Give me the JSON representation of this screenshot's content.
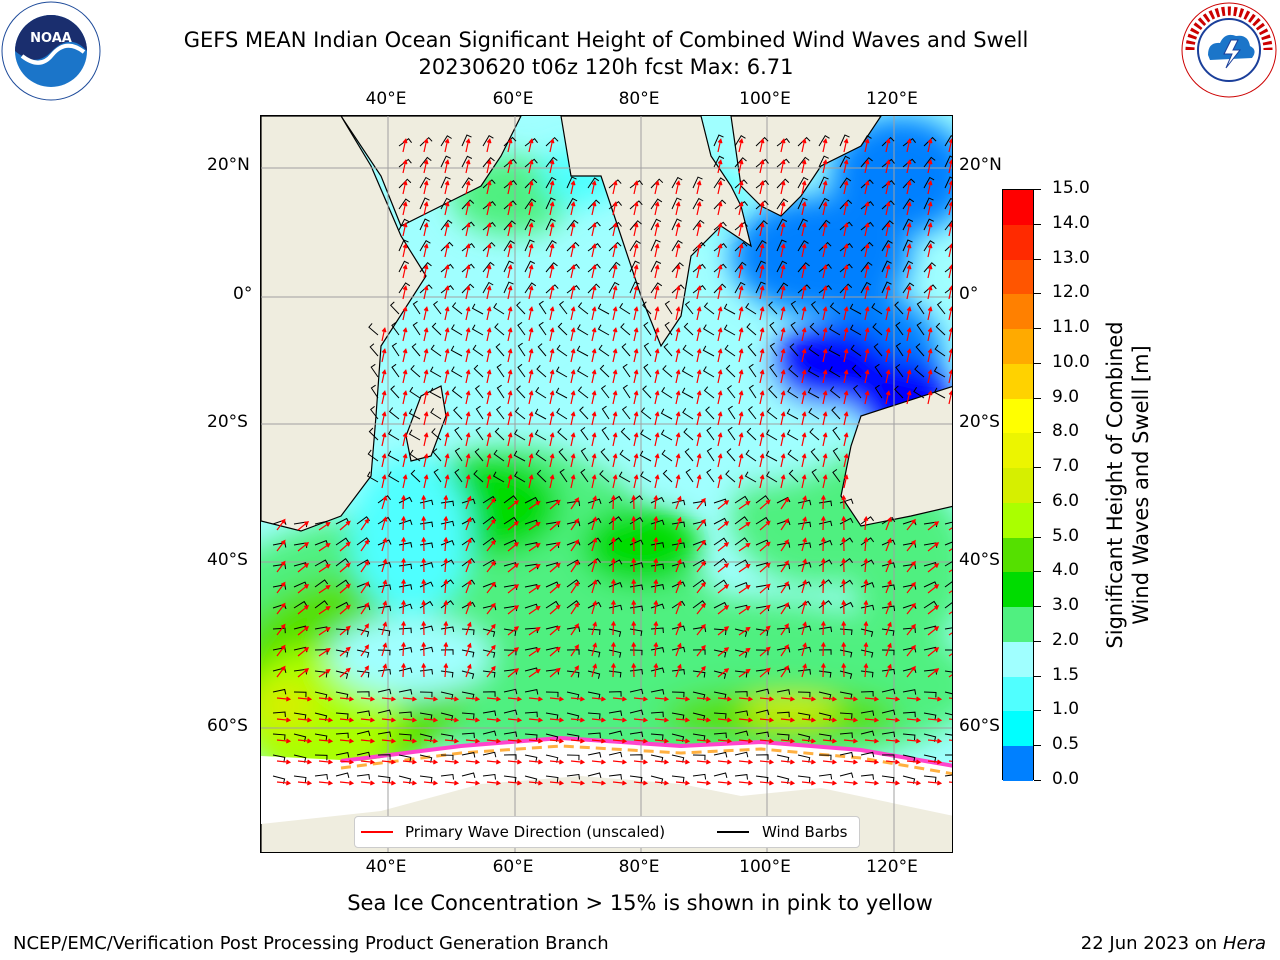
{
  "header": {
    "title": "GEFS MEAN Indian Ocean Significant Height of Combined Wind Waves and Swell",
    "subtitle": "20230620 t06z 120h fcst   Max: 6.71"
  },
  "logos": {
    "left": {
      "icon": "noaa-logo",
      "text": "NOAA"
    },
    "right": {
      "icon": "nws-logo",
      "text": "NATIONAL WEATHER SERVICE"
    }
  },
  "map": {
    "lon_ticks_top": [
      "40°E",
      "60°E",
      "80°E",
      "100°E",
      "120°E"
    ],
    "lon_ticks_bottom": [
      "40°E",
      "60°E",
      "80°E",
      "100°E",
      "120°E"
    ],
    "lat_ticks_left": [
      "20°N",
      "0°",
      "20°S",
      "40°S",
      "60°S"
    ],
    "lat_ticks_right": [
      "20°N",
      "0°",
      "20°S",
      "40°S",
      "60°S"
    ],
    "colors": {
      "land": "#efeddf",
      "ice": "#ffffff"
    }
  },
  "colorbar": {
    "label_line1": "Significant Height of Combined",
    "label_line2": "Wind Waves and Swell [m]",
    "ticks": [
      "15.0",
      "14.0",
      "13.0",
      "12.0",
      "11.0",
      "10.0",
      "9.0",
      "8.0",
      "7.0",
      "6.0",
      "5.0",
      "4.0",
      "3.0",
      "2.0",
      "1.5",
      "1.0",
      "0.5",
      "0.0"
    ],
    "colors": [
      "#ff0000",
      "#ff2a00",
      "#ff5500",
      "#ff8000",
      "#ffaa00",
      "#ffd200",
      "#ffff00",
      "#ecf500",
      "#d6ef00",
      "#aaff00",
      "#55e000",
      "#00dc00",
      "#50f080",
      "#a0ffff",
      "#50ffff",
      "#00ffff",
      "#0080ff",
      "#0000ff"
    ]
  },
  "legend": {
    "wave_label": "Primary Wave Direction (unscaled)",
    "wind_label": "Wind Barbs",
    "wave_color": "#ff0000",
    "wind_color": "#000000"
  },
  "footer": {
    "note": "Sea Ice Concentration > 15% is shown in pink to yellow",
    "branch": "NCEP/EMC/Verification Post Processing Product Generation Branch",
    "date": "22 Jun 2023 on",
    "machine": "Hera"
  }
}
